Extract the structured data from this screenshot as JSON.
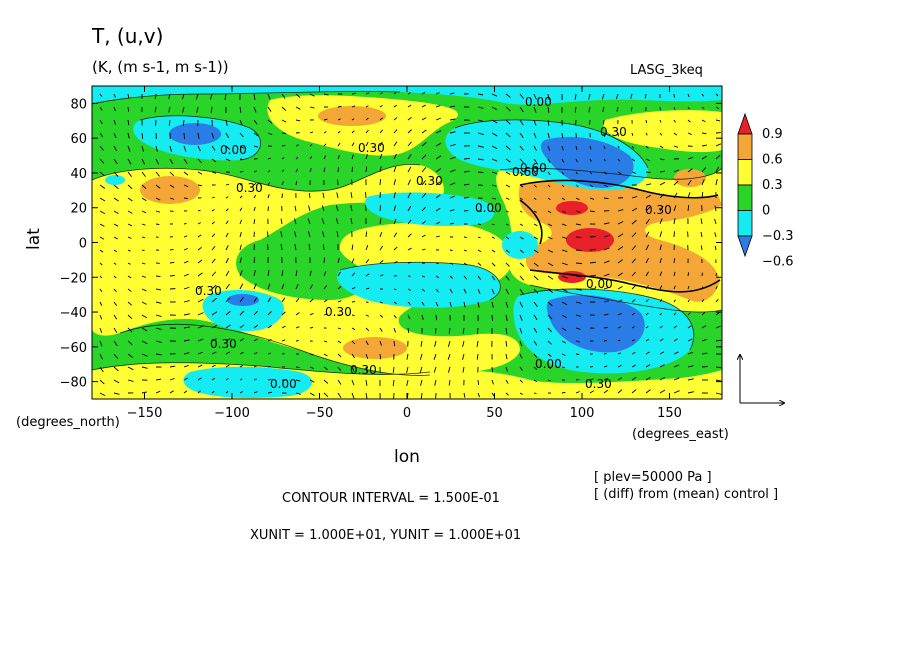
{
  "header": {
    "title": "T, (u,v)",
    "units": "(K, (m s-1, m s-1))",
    "model": "LASG_3keq"
  },
  "axes": {
    "ylabel": "lat",
    "xlabel": "lon",
    "y_unit_note": "(degrees_north)",
    "x_unit_note": "(degrees_east)"
  },
  "footer": {
    "plev": "[ plev=50000 Pa ]",
    "diff": "[ (diff) from (mean) control ]",
    "contour": "CONTOUR INTERVAL = 1.500E-01",
    "units": "XUNIT = 1.000E+01, YUNIT = 1.000E+01"
  },
  "colorbar": {
    "labels": [
      "0.9",
      "0.6",
      "0.3",
      "0",
      "-0.3",
      "-0.6"
    ],
    "colors": [
      "#e8202a",
      "#f4a636",
      "#ffff33",
      "#2ad52a",
      "#14ecf2",
      "#2a7de6"
    ]
  },
  "contour_labels": [
    "0.00",
    "0.30",
    "0.30",
    "0.30",
    "0.30",
    "0.30",
    "0.60",
    "0.00",
    "0.30",
    "0.30",
    "0.30",
    "0.00",
    "0.00",
    "0.30",
    "0.00",
    "0.60",
    "0.00",
    "0.30"
  ],
  "chart_data": {
    "type": "heatmap",
    "title": "T, (u,v)",
    "subtitle": "(K, (m s-1, m s-1))",
    "xlabel": "lon",
    "ylabel": "lat",
    "xlim": [
      -180,
      180
    ],
    "ylim": [
      -90,
      90
    ],
    "xticks": [
      -150,
      -100,
      -50,
      0,
      50,
      100,
      150
    ],
    "yticks": [
      80,
      60,
      40,
      20,
      0,
      -20,
      -40,
      -60,
      -80
    ],
    "levels": [
      -0.6,
      -0.3,
      0,
      0.3,
      0.6,
      0.9
    ],
    "contour_interval": 0.15,
    "grid": false,
    "colors": {
      "lt_-0.3": "#2a7de6",
      "-0.3_0": "#14ecf2",
      "0_0.3": "#2ad52a",
      "0.3_0.6": "#ffff33",
      "0.6_0.9": "#f4a636",
      "gt_0.9": "#e8202a"
    }
  }
}
